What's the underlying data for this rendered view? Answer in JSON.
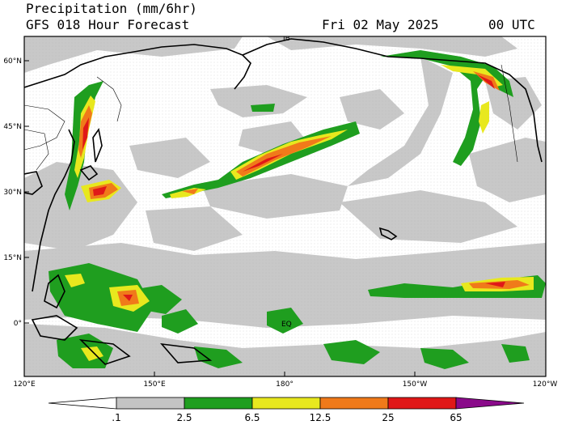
{
  "title": {
    "line1": "Precipitation (mm/6hr)",
    "line2": "GFS 018 Hour Forecast",
    "date": "Fri 02 May 2025",
    "time": "00 UTC"
  },
  "map": {
    "lat_labels": [
      "60°N",
      "45°N",
      "30°N",
      "15°N",
      "0°"
    ],
    "lon_labels": [
      "120°E",
      "150°E",
      "180°",
      "150°W",
      "120°W"
    ],
    "markers": [
      "EQ",
      "IB"
    ]
  },
  "colorbar": {
    "labels": [
      ".1",
      "2.5",
      "6.5",
      "12.5",
      "25",
      "65"
    ],
    "colors": [
      "#ffffff",
      "#c4c4c4",
      "#1f9e1f",
      "#e8e81e",
      "#f07a1a",
      "#e01818",
      "#8a0a8a"
    ]
  }
}
